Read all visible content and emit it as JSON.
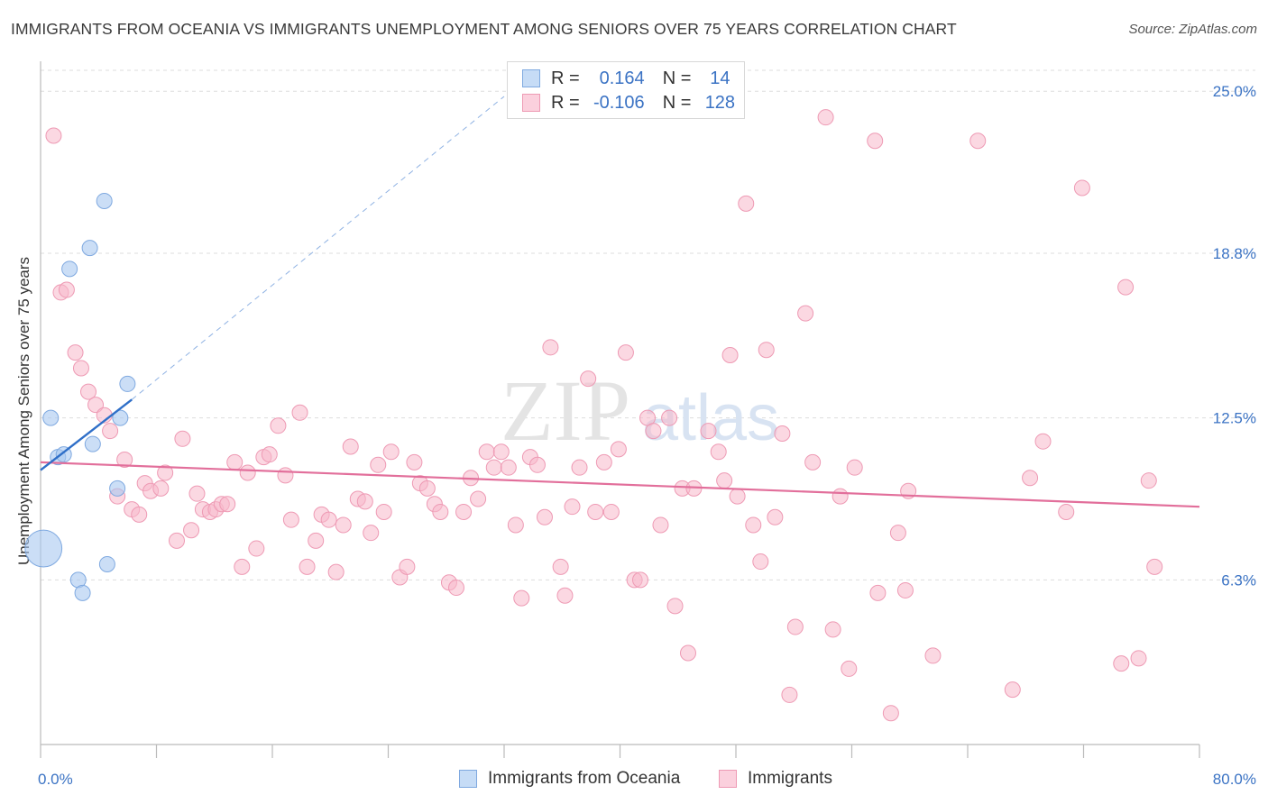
{
  "title": "IMMIGRANTS FROM OCEANIA VS IMMIGRANTS UNEMPLOYMENT AMONG SENIORS OVER 75 YEARS CORRELATION CHART",
  "source": "Source: ZipAtlas.com",
  "watermark": {
    "zip": "ZIP",
    "atlas": "atlas"
  },
  "legend_top": {
    "rows": [
      {
        "r_label": "R =",
        "r_value": "0.164",
        "n_label": "N =",
        "n_value": "14",
        "color": "#a8c8f0"
      },
      {
        "r_label": "R =",
        "r_value": "-0.106",
        "n_label": "N =",
        "n_value": "128",
        "color": "#f7b8cb"
      }
    ]
  },
  "legend_bottom": {
    "items": [
      {
        "label": "Immigrants from Oceania",
        "color": "#a8c8f0"
      },
      {
        "label": "Immigrants",
        "color": "#f7b8cb"
      }
    ]
  },
  "colors": {
    "blue_fill": "#a8c8f0",
    "blue_stroke": "#7fa9e0",
    "blue_line": "#2f6fc8",
    "pink_fill": "#f7b8cb",
    "pink_stroke": "#ee9ab4",
    "pink_line": "#e26f9b",
    "tick_label": "#3b73c4",
    "grid": "#dddddd",
    "axis": "#bbbbbb"
  },
  "chart_data": {
    "type": "scatter",
    "title": "IMMIGRANTS FROM OCEANIA VS IMMIGRANTS UNEMPLOYMENT AMONG SENIORS OVER 75 YEARS CORRELATION CHART",
    "xlabel": "",
    "ylabel": "Unemployment Among Seniors over 75 years",
    "xlim": [
      0,
      80
    ],
    "ylim": [
      0,
      25.8
    ],
    "x_tick_labels": [
      "0.0%",
      "80.0%"
    ],
    "y_ticks": [
      6.3,
      12.5,
      18.8,
      25.0
    ],
    "y_tick_labels": [
      "6.3%",
      "12.5%",
      "18.8%",
      "25.0%"
    ],
    "grid": true,
    "series": [
      {
        "name": "Immigrants from Oceania",
        "points": [
          [
            0.2,
            7.5,
            2.4
          ],
          [
            0.7,
            12.5,
            1
          ],
          [
            1.2,
            11.0,
            1
          ],
          [
            1.6,
            11.1,
            1
          ],
          [
            2.0,
            18.2,
            1
          ],
          [
            2.6,
            6.3,
            1
          ],
          [
            2.9,
            5.8,
            1
          ],
          [
            3.4,
            19.0,
            1
          ],
          [
            3.6,
            11.5,
            1
          ],
          [
            4.4,
            20.8,
            1
          ],
          [
            4.6,
            6.9,
            1
          ],
          [
            5.3,
            9.8,
            1
          ],
          [
            5.5,
            12.5,
            1
          ],
          [
            6.0,
            13.8,
            1
          ]
        ],
        "trend": {
          "x1": 0,
          "y1": 10.5,
          "x2": 6.3,
          "y2": 13.2,
          "dashed_to_x": 32,
          "dashed_to_y": 24.8
        }
      },
      {
        "name": "Immigrants",
        "points": [
          [
            0.9,
            23.3
          ],
          [
            1.4,
            17.3
          ],
          [
            1.8,
            17.4
          ],
          [
            2.4,
            15.0
          ],
          [
            2.8,
            14.4
          ],
          [
            3.3,
            13.5
          ],
          [
            3.8,
            13.0
          ],
          [
            4.4,
            12.6
          ],
          [
            4.8,
            12.0
          ],
          [
            5.3,
            9.5
          ],
          [
            5.8,
            10.9
          ],
          [
            6.3,
            9.0
          ],
          [
            6.8,
            8.8
          ],
          [
            7.2,
            10.0
          ],
          [
            7.6,
            9.7
          ],
          [
            8.3,
            9.8
          ],
          [
            8.6,
            10.4
          ],
          [
            9.4,
            7.8
          ],
          [
            9.8,
            11.7
          ],
          [
            10.4,
            8.2
          ],
          [
            10.8,
            9.6
          ],
          [
            11.2,
            9.0
          ],
          [
            11.7,
            8.9
          ],
          [
            12.1,
            9.0
          ],
          [
            12.5,
            9.2
          ],
          [
            12.9,
            9.2
          ],
          [
            13.4,
            10.8
          ],
          [
            13.9,
            6.8
          ],
          [
            14.3,
            10.4
          ],
          [
            14.9,
            7.5
          ],
          [
            15.4,
            11.0
          ],
          [
            15.8,
            11.1
          ],
          [
            16.4,
            12.2
          ],
          [
            16.9,
            10.3
          ],
          [
            17.3,
            8.6
          ],
          [
            17.9,
            12.7
          ],
          [
            18.4,
            6.8
          ],
          [
            19.0,
            7.8
          ],
          [
            19.4,
            8.8
          ],
          [
            19.9,
            8.6
          ],
          [
            20.4,
            6.6
          ],
          [
            20.9,
            8.4
          ],
          [
            21.4,
            11.4
          ],
          [
            21.9,
            9.4
          ],
          [
            22.4,
            9.3
          ],
          [
            22.8,
            8.1
          ],
          [
            23.3,
            10.7
          ],
          [
            23.7,
            8.9
          ],
          [
            24.2,
            11.2
          ],
          [
            24.8,
            6.4
          ],
          [
            25.3,
            6.8
          ],
          [
            25.8,
            10.8
          ],
          [
            26.2,
            10.0
          ],
          [
            26.7,
            9.8
          ],
          [
            27.2,
            9.2
          ],
          [
            27.6,
            8.9
          ],
          [
            28.2,
            6.2
          ],
          [
            28.7,
            6.0
          ],
          [
            29.2,
            8.9
          ],
          [
            29.7,
            10.2
          ],
          [
            30.2,
            9.4
          ],
          [
            30.8,
            11.2
          ],
          [
            31.3,
            10.6
          ],
          [
            31.8,
            11.2
          ],
          [
            32.3,
            10.6
          ],
          [
            32.8,
            8.4
          ],
          [
            33.2,
            5.6
          ],
          [
            33.8,
            11.0
          ],
          [
            34.3,
            10.7
          ],
          [
            34.8,
            8.7
          ],
          [
            35.2,
            15.2
          ],
          [
            35.9,
            6.8
          ],
          [
            36.2,
            5.7
          ],
          [
            36.7,
            9.1
          ],
          [
            37.2,
            10.6
          ],
          [
            37.8,
            14.0
          ],
          [
            38.3,
            8.9
          ],
          [
            38.9,
            10.8
          ],
          [
            39.4,
            8.9
          ],
          [
            39.9,
            11.3
          ],
          [
            40.4,
            15.0
          ],
          [
            41.0,
            6.3
          ],
          [
            41.4,
            6.3
          ],
          [
            41.9,
            12.5
          ],
          [
            42.3,
            12.0
          ],
          [
            42.8,
            8.4
          ],
          [
            43.4,
            12.5
          ],
          [
            43.8,
            5.3
          ],
          [
            44.3,
            9.8
          ],
          [
            44.7,
            3.5
          ],
          [
            45.1,
            9.8
          ],
          [
            46.1,
            12.0
          ],
          [
            46.8,
            11.2
          ],
          [
            47.2,
            10.1
          ],
          [
            47.6,
            14.9
          ],
          [
            48.1,
            9.5
          ],
          [
            48.7,
            20.7
          ],
          [
            49.2,
            8.4
          ],
          [
            49.7,
            7.0
          ],
          [
            50.1,
            15.1
          ],
          [
            50.7,
            8.7
          ],
          [
            51.2,
            11.9
          ],
          [
            51.7,
            1.9
          ],
          [
            52.1,
            4.5
          ],
          [
            52.8,
            16.5
          ],
          [
            53.3,
            10.8
          ],
          [
            54.2,
            24.0
          ],
          [
            54.7,
            4.4
          ],
          [
            55.2,
            9.5
          ],
          [
            55.8,
            2.9
          ],
          [
            56.2,
            10.6
          ],
          [
            57.6,
            23.1
          ],
          [
            57.8,
            5.8
          ],
          [
            58.7,
            1.2
          ],
          [
            59.2,
            8.1
          ],
          [
            59.7,
            5.9
          ],
          [
            59.9,
            9.7
          ],
          [
            61.6,
            3.4
          ],
          [
            64.7,
            23.1
          ],
          [
            67.1,
            2.1
          ],
          [
            68.3,
            10.2
          ],
          [
            69.2,
            11.6
          ],
          [
            70.8,
            8.9
          ],
          [
            71.9,
            21.3
          ],
          [
            74.6,
            3.1
          ],
          [
            74.9,
            17.5
          ],
          [
            75.8,
            3.3
          ],
          [
            76.5,
            10.1
          ],
          [
            76.9,
            6.8
          ]
        ],
        "trend": {
          "x1": 0,
          "y1": 10.8,
          "x2": 80,
          "y2": 9.1
        }
      }
    ]
  }
}
